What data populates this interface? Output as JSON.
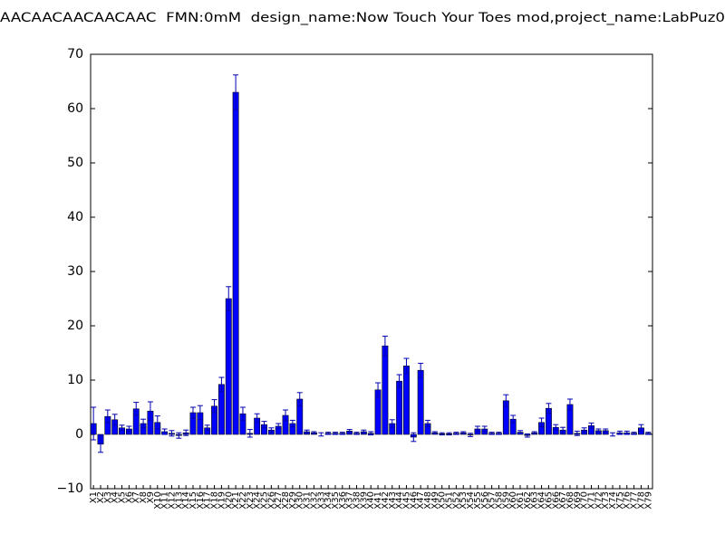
{
  "chart_data": {
    "type": "bar",
    "title": "AACAACAACAACAAC  FMN:0mM  design_name:Now Touch Your Toes mod,project_name:LabPuz0",
    "categories": [
      "X1",
      "X2",
      "X3",
      "X4",
      "X5",
      "X6",
      "X7",
      "X8",
      "X9",
      "X10",
      "X11",
      "X12",
      "X13",
      "X14",
      "X15",
      "X16",
      "X17",
      "X18",
      "X19",
      "X20",
      "X21",
      "X22",
      "X23",
      "X24",
      "X25",
      "X26",
      "X27",
      "X28",
      "X29",
      "X30",
      "X31",
      "X32",
      "X33",
      "X34",
      "X35",
      "X36",
      "X37",
      "X38",
      "X39",
      "X40",
      "X41",
      "X42",
      "X43",
      "X44",
      "X45",
      "X46",
      "X47",
      "X48",
      "X49",
      "X50",
      "X51",
      "X52",
      "X53",
      "X54",
      "X55",
      "X56",
      "X57",
      "X58",
      "X59",
      "X60",
      "X61",
      "X62",
      "X63",
      "X64",
      "X65",
      "X66",
      "X67",
      "X68",
      "X69",
      "X70",
      "X71",
      "X72",
      "X73",
      "X74",
      "X75",
      "X76",
      "X77",
      "X78",
      "X79"
    ],
    "values": [
      2,
      -1.8,
      3.3,
      2.7,
      1.2,
      1,
      4.7,
      2,
      4.3,
      2.2,
      0.5,
      0.2,
      -0.2,
      0.3,
      4,
      4,
      1.2,
      5.2,
      9.2,
      25,
      63,
      3.8,
      0.2,
      3,
      1.8,
      0.8,
      1.5,
      3.5,
      2,
      6.5,
      0.5,
      0.3,
      0,
      0.2,
      0.2,
      0.2,
      0.6,
      0.2,
      0.5,
      0.2,
      8.2,
      16.3,
      2,
      9.8,
      12.6,
      -0.5,
      11.8,
      2,
      0.3,
      0.1,
      0.1,
      0.2,
      0.3,
      -0.1,
      1,
      1,
      0.2,
      0.2,
      6.2,
      2.8,
      0.4,
      -0.2,
      0.3,
      2.2,
      4.8,
      1.3,
      0.8,
      5.5,
      0.2,
      0.8,
      1.6,
      0.7,
      0.7,
      0,
      0.3,
      0.3,
      0.2,
      1.2,
      0.2
    ],
    "errors": [
      3,
      1.5,
      1.2,
      1,
      0.5,
      0.5,
      1.2,
      0.8,
      1.7,
      1.2,
      0.5,
      0.5,
      0.5,
      0.5,
      1,
      1.3,
      0.5,
      1.2,
      1.3,
      2.2,
      3.2,
      1.2,
      0.7,
      0.8,
      0.6,
      0.4,
      0.5,
      1,
      0.6,
      1.2,
      0.3,
      0.2,
      0.3,
      0.2,
      0.2,
      0.2,
      0.3,
      0.2,
      0.3,
      0.3,
      1.3,
      1.8,
      0.7,
      1.2,
      1.4,
      0.8,
      1.3,
      0.6,
      0.2,
      0.2,
      0.2,
      0.2,
      0.2,
      0.3,
      0.5,
      0.5,
      0.2,
      0.2,
      1.1,
      0.7,
      0.3,
      0.3,
      0.2,
      0.8,
      0.9,
      0.5,
      0.5,
      1,
      0.4,
      0.4,
      0.5,
      0.3,
      0.3,
      0.3,
      0.3,
      0.3,
      0.2,
      0.6,
      0.2
    ],
    "color": "#0000ff",
    "error_color": "#0000b0",
    "ylim": [
      -10,
      70
    ],
    "yticks": [
      {
        "value": -10,
        "label": "−10"
      },
      0,
      10,
      20,
      30,
      40,
      50,
      60,
      70
    ]
  }
}
